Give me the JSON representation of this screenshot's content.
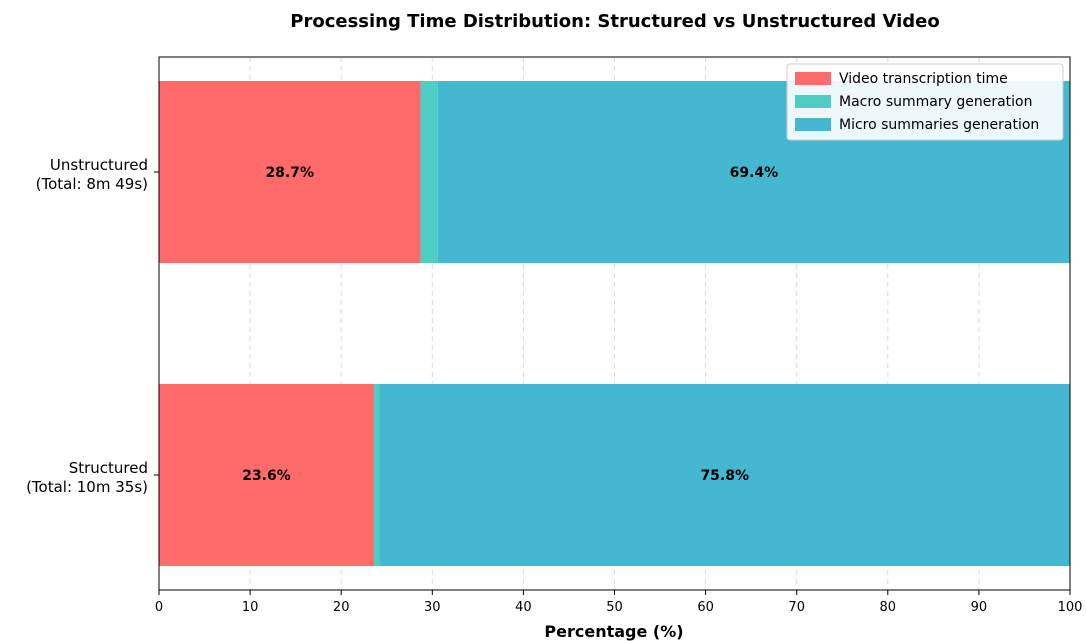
{
  "chart_data": {
    "type": "bar",
    "orientation": "horizontal",
    "stacked": true,
    "title": "Processing Time Distribution: Structured vs Unstructured Video",
    "xlabel": "Percentage (%)",
    "ylabel": "",
    "xlim": [
      0,
      100
    ],
    "xticks": [
      0,
      10,
      20,
      30,
      40,
      50,
      60,
      70,
      80,
      90,
      100
    ],
    "grid": "x-dashed",
    "legend_position": "top-right",
    "categories": [
      {
        "line1": "Unstructured",
        "line2": "(Total: 8m 49s)"
      },
      {
        "line1": "Structured",
        "line2": "(Total: 10m 35s)"
      }
    ],
    "series": [
      {
        "name": "Video transcription time",
        "color": "#ff6b6b",
        "values": [
          28.7,
          23.6
        ],
        "labels": [
          "28.7%",
          "23.6%"
        ]
      },
      {
        "name": "Macro summary generation",
        "color": "#4ecdc4",
        "values": [
          1.9,
          0.6
        ],
        "labels": [
          "",
          ""
        ]
      },
      {
        "name": "Micro summaries generation",
        "color": "#45b7d1",
        "values": [
          69.4,
          75.8
        ],
        "labels": [
          "69.4%",
          "75.8%"
        ]
      }
    ]
  }
}
